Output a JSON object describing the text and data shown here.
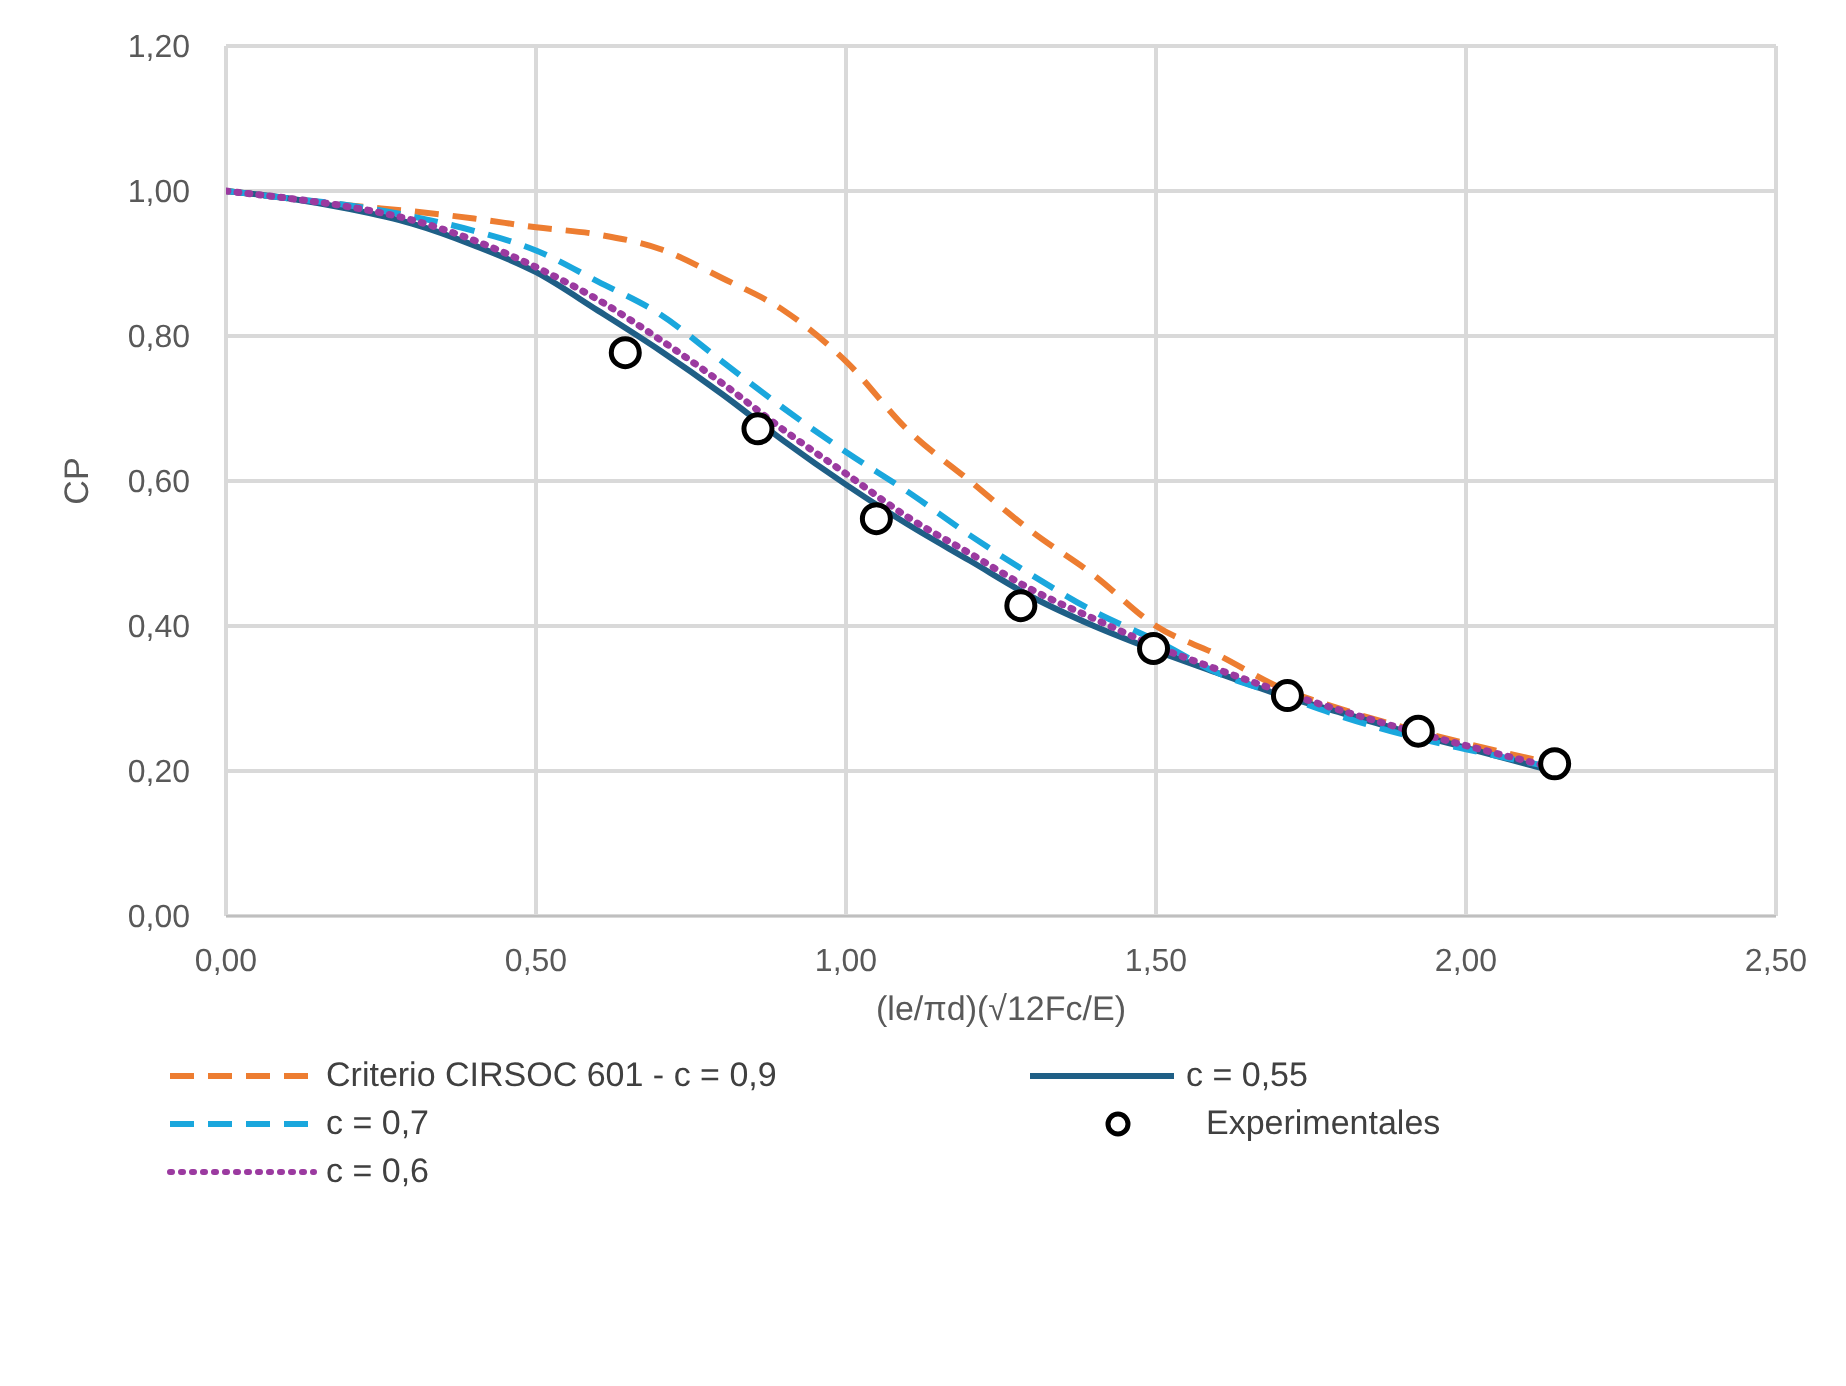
{
  "chart_data": {
    "type": "line",
    "xlabel": "(le/πd)(√12Fc/E)",
    "ylabel": "CP",
    "xlim": [
      0,
      2.5
    ],
    "xticks": [
      {
        "value": 0,
        "label": "0,00"
      },
      {
        "value": 0.5,
        "label": "0,50"
      },
      {
        "value": 1,
        "label": "1,00"
      },
      {
        "value": 1.5,
        "label": "1,50"
      },
      {
        "value": 2,
        "label": "2,00"
      },
      {
        "value": 2.5,
        "label": "2,50"
      }
    ],
    "ylim": [
      0,
      1.2
    ],
    "yticks": [
      {
        "value": 0,
        "label": "0,00"
      },
      {
        "value": 0.2,
        "label": "0,20"
      },
      {
        "value": 0.4,
        "label": "0,40"
      },
      {
        "value": 0.6,
        "label": "0,60"
      },
      {
        "value": 0.8,
        "label": "0,80"
      },
      {
        "value": 1,
        "label": "1,00"
      },
      {
        "value": 1.2,
        "label": "1,20"
      }
    ],
    "grid": true,
    "legend": "bottom",
    "marker": "none",
    "series": [
      {
        "name": "Criterio CIRSOC 601 - c = 0,9",
        "color": "#ed7d31",
        "line_style": "dashed",
        "x": [
          0,
          0.1,
          0.2,
          0.3,
          0.4,
          0.5,
          0.6,
          0.7,
          0.8,
          0.9,
          1.0,
          1.1,
          1.2,
          1.3,
          1.4,
          1.5,
          1.6,
          1.7,
          1.8,
          1.9,
          2.0,
          2.14
        ],
        "values": [
          1,
          0.99,
          0.98,
          0.972,
          0.962,
          0.95,
          0.94,
          0.92,
          0.88,
          0.835,
          0.765,
          0.67,
          0.6,
          0.53,
          0.47,
          0.4,
          0.36,
          0.315,
          0.285,
          0.26,
          0.238,
          0.21
        ]
      },
      {
        "name": "c = 0,55",
        "color": "#1f5f86",
        "line_style": "solid",
        "x": [
          0,
          0.1,
          0.2,
          0.3,
          0.4,
          0.5,
          0.6,
          0.7,
          0.8,
          0.9,
          1.0,
          1.1,
          1.2,
          1.3,
          1.4,
          1.5,
          1.6,
          1.7,
          1.8,
          1.9,
          2.0,
          2.14
        ],
        "values": [
          1,
          0.99,
          0.975,
          0.955,
          0.925,
          0.888,
          0.835,
          0.78,
          0.72,
          0.655,
          0.595,
          0.54,
          0.49,
          0.44,
          0.4,
          0.366,
          0.335,
          0.305,
          0.28,
          0.255,
          0.232,
          0.2
        ]
      },
      {
        "name": "c = 0,7",
        "color": "#1aa7dd",
        "line_style": "dashed",
        "x": [
          0,
          0.1,
          0.2,
          0.3,
          0.4,
          0.5,
          0.6,
          0.7,
          0.8,
          0.9,
          1.0,
          1.1,
          1.2,
          1.3,
          1.4,
          1.5,
          1.6,
          1.7,
          1.8,
          1.9,
          2.0,
          2.14
        ],
        "values": [
          1,
          0.99,
          0.98,
          0.965,
          0.945,
          0.918,
          0.875,
          0.83,
          0.765,
          0.7,
          0.64,
          0.585,
          0.525,
          0.47,
          0.42,
          0.38,
          0.335,
          0.305,
          0.275,
          0.25,
          0.23,
          0.205
        ]
      },
      {
        "name": "Experimentales",
        "type": "scatter",
        "marker": "circle",
        "color": "#000000",
        "x": [
          0.644,
          0.858,
          1.049,
          1.282,
          1.496,
          1.712,
          1.923,
          2.143
        ],
        "values": [
          0.777,
          0.672,
          0.548,
          0.428,
          0.369,
          0.304,
          0.255,
          0.21
        ]
      },
      {
        "name": "c = 0,6",
        "color": "#9b3aa0",
        "line_style": "dotted",
        "x": [
          0,
          0.1,
          0.2,
          0.3,
          0.4,
          0.5,
          0.6,
          0.7,
          0.8,
          0.9,
          1.0,
          1.1,
          1.2,
          1.3,
          1.4,
          1.5,
          1.6,
          1.7,
          1.8,
          1.9,
          2.0,
          2.14
        ],
        "values": [
          1,
          0.99,
          0.978,
          0.96,
          0.932,
          0.895,
          0.85,
          0.795,
          0.735,
          0.67,
          0.61,
          0.55,
          0.5,
          0.45,
          0.41,
          0.372,
          0.34,
          0.31,
          0.283,
          0.258,
          0.235,
          0.205
        ]
      }
    ]
  }
}
